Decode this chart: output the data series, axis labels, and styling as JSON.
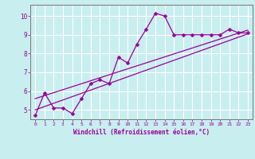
{
  "title": "",
  "xlabel": "Windchill (Refroidissement éolien,°C)",
  "ylabel": "",
  "background_color": "#c8eef0",
  "line_color": "#990099",
  "grid_color": "#ffffff",
  "xlim": [
    -0.5,
    23.5
  ],
  "ylim": [
    4.5,
    10.6
  ],
  "yticks": [
    5,
    6,
    7,
    8,
    9,
    10
  ],
  "xticks": [
    0,
    1,
    2,
    3,
    4,
    5,
    6,
    7,
    8,
    9,
    10,
    11,
    12,
    13,
    14,
    15,
    16,
    17,
    18,
    19,
    20,
    21,
    22,
    23
  ],
  "series1_x": [
    0,
    1,
    2,
    3,
    4,
    5,
    6,
    7,
    8,
    9,
    10,
    11,
    12,
    13,
    14,
    15,
    16,
    17,
    18,
    19,
    20,
    21,
    22,
    23
  ],
  "series1_y": [
    4.7,
    5.9,
    5.1,
    5.1,
    4.8,
    5.6,
    6.4,
    6.6,
    6.4,
    7.8,
    7.5,
    8.5,
    9.3,
    10.15,
    10.0,
    9.0,
    9.0,
    9.0,
    9.0,
    9.0,
    9.0,
    9.3,
    9.1,
    9.1
  ],
  "series2_x": [
    0,
    23
  ],
  "series2_y": [
    5.6,
    9.25
  ],
  "series3_x": [
    0,
    23
  ],
  "series3_y": [
    5.0,
    9.05
  ],
  "marker_size": 2.5,
  "line_width": 0.9
}
